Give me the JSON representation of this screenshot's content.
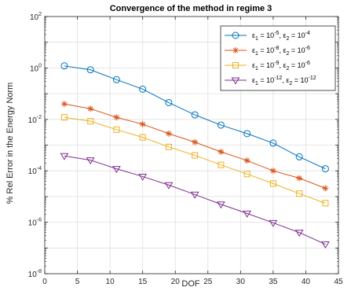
{
  "chart_data": {
    "type": "line",
    "title": "Convergence of the method in regime 3",
    "xlabel": "DOF",
    "ylabel": "% Rel Error in the Energy Norm",
    "xlim": [
      0,
      45
    ],
    "ylim_log10": [
      -8,
      2
    ],
    "yscale": "log",
    "x_ticks": [
      0,
      5,
      10,
      15,
      20,
      25,
      30,
      35,
      40,
      45
    ],
    "y_ticks": [
      {
        "base": "10",
        "exp": "-8"
      },
      {
        "base": "10",
        "exp": "-6"
      },
      {
        "base": "10",
        "exp": "-4"
      },
      {
        "base": "10",
        "exp": "-2"
      },
      {
        "base": "10",
        "exp": "0"
      },
      {
        "base": "10",
        "exp": "2"
      }
    ],
    "grid": true,
    "legend_position": "top-right",
    "x": [
      3,
      7,
      11,
      15,
      19,
      23,
      27,
      31,
      35,
      39,
      43
    ],
    "series": [
      {
        "name": "ε1 = 10^-5, ε2 = 10^-4",
        "label_parts": {
          "e1exp": "-5",
          "e2exp": "-4"
        },
        "color": "#0072BD",
        "marker": "circle",
        "values": [
          1.2,
          0.85,
          0.35,
          0.15,
          0.045,
          0.015,
          0.006,
          0.0028,
          0.0012,
          0.00035,
          0.00012
        ]
      },
      {
        "name": "ε1 = 10^-8, ε2 = 10^-6",
        "label_parts": {
          "e1exp": "-8",
          "e2exp": "-6"
        },
        "color": "#D95319",
        "marker": "star",
        "values": [
          0.04,
          0.026,
          0.012,
          0.0065,
          0.0028,
          0.0013,
          0.00055,
          0.00025,
          0.0001,
          5.2e-05,
          2.1e-05
        ]
      },
      {
        "name": "ε1 = 10^-9, ε2 = 10^-6",
        "label_parts": {
          "e1exp": "-9",
          "e2exp": "-6"
        },
        "color": "#EDB120",
        "marker": "square",
        "values": [
          0.012,
          0.0085,
          0.004,
          0.002,
          0.00085,
          0.0004,
          0.00017,
          7.5e-05,
          3.2e-05,
          1.3e-05,
          5.5e-06
        ]
      },
      {
        "name": "ε1 = 10^-12, ε2 = 10^-12",
        "label_parts": {
          "e1exp": "-12",
          "e2exp": "-12"
        },
        "color": "#7E2F8E",
        "marker": "triangle-down",
        "values": [
          0.00038,
          0.00026,
          0.00012,
          6e-05,
          2.8e-05,
          1.2e-05,
          5e-06,
          2.2e-06,
          9.5e-07,
          4e-07,
          1.4e-07
        ]
      }
    ]
  }
}
